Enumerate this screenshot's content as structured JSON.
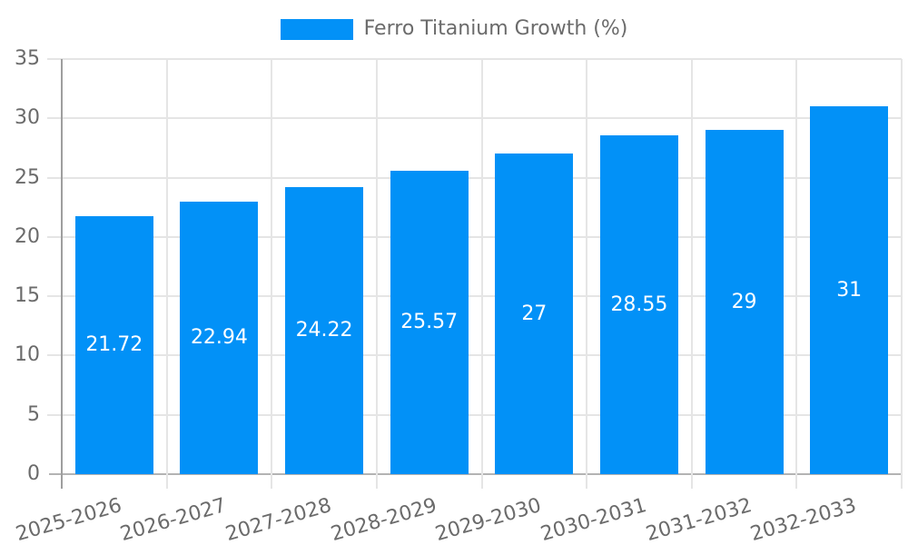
{
  "chart_data": {
    "type": "bar",
    "legend": "Ferro Titanium Growth (%)",
    "legend_position": "top",
    "categories": [
      "2025-2026",
      "2026-2027",
      "2027-2028",
      "2028-2029",
      "2029-2030",
      "2030-2031",
      "2031-2032",
      "2032-2033"
    ],
    "values": [
      21.72,
      22.94,
      24.22,
      25.57,
      27,
      28.55,
      29,
      31
    ],
    "ylim": [
      0,
      35
    ],
    "y_ticks": [
      0,
      5,
      10,
      15,
      20,
      25,
      30,
      35
    ],
    "grid": true,
    "colors": {
      "bar": "#0291f7",
      "bar_value_label": "#ffffff",
      "grid_line": "#e5e5e5",
      "tick_mark": "#e5e5e5",
      "y_axis_line": "#9e9e9e",
      "x_axis_line": "#b3b3b3",
      "label_text": "#6b6b6b"
    }
  }
}
